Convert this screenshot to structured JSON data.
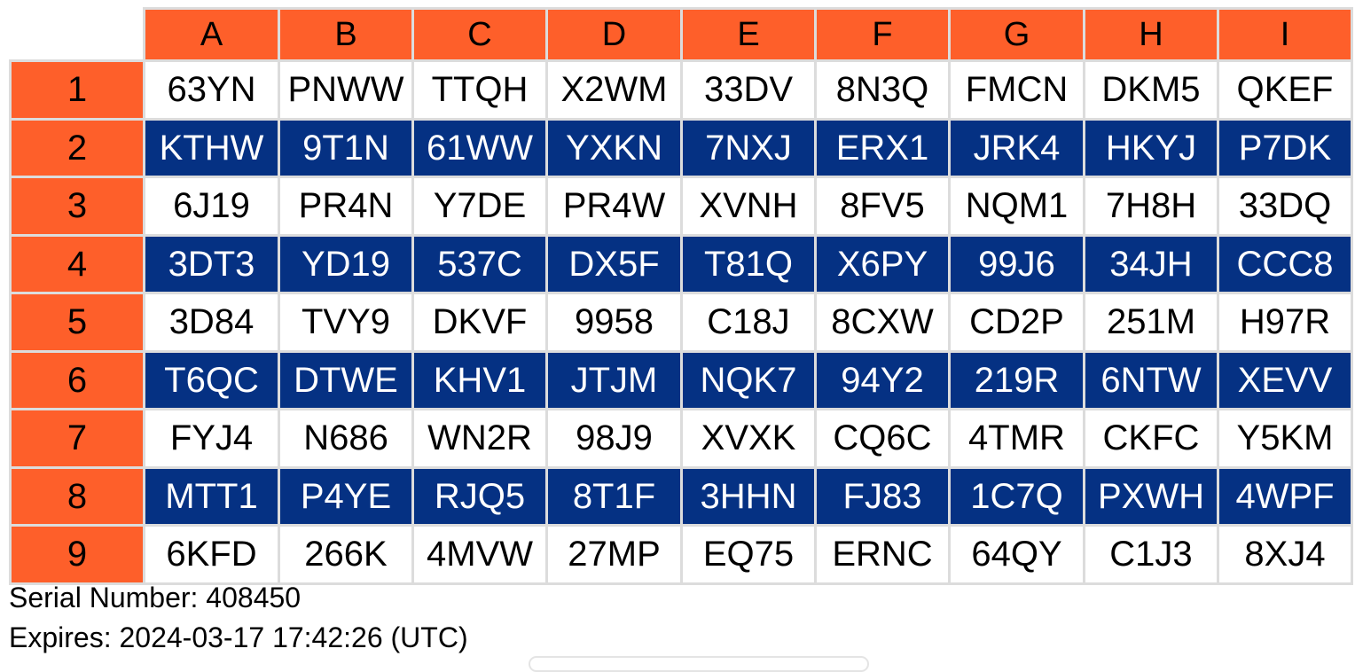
{
  "columns": [
    "A",
    "B",
    "C",
    "D",
    "E",
    "F",
    "G",
    "H",
    "I"
  ],
  "colors": {
    "header_orange": "#fe5f2a",
    "stripe_blue": "#053183",
    "grid_border": "#dcdcdc"
  },
  "rows": [
    {
      "label": "1",
      "stripe": "white",
      "cells": [
        "63YN",
        "PNWW",
        "TTQH",
        "X2WM",
        "33DV",
        "8N3Q",
        "FMCN",
        "DKM5",
        "QKEF"
      ]
    },
    {
      "label": "2",
      "stripe": "blue",
      "cells": [
        "KTHW",
        "9T1N",
        "61WW",
        "YXKN",
        "7NXJ",
        "ERX1",
        "JRK4",
        "HKYJ",
        "P7DK"
      ]
    },
    {
      "label": "3",
      "stripe": "white",
      "cells": [
        "6J19",
        "PR4N",
        "Y7DE",
        "PR4W",
        "XVNH",
        "8FV5",
        "NQM1",
        "7H8H",
        "33DQ"
      ]
    },
    {
      "label": "4",
      "stripe": "blue",
      "cells": [
        "3DT3",
        "YD19",
        "537C",
        "DX5F",
        "T81Q",
        "X6PY",
        "99J6",
        "34JH",
        "CCC8"
      ]
    },
    {
      "label": "5",
      "stripe": "white",
      "cells": [
        "3D84",
        "TVY9",
        "DKVF",
        "9958",
        "C18J",
        "8CXW",
        "CD2P",
        "251M",
        "H97R"
      ]
    },
    {
      "label": "6",
      "stripe": "blue",
      "cells": [
        "T6QC",
        "DTWE",
        "KHV1",
        "JTJM",
        "NQK7",
        "94Y2",
        "219R",
        "6NTW",
        "XEVV"
      ]
    },
    {
      "label": "7",
      "stripe": "white",
      "cells": [
        "FYJ4",
        "N686",
        "WN2R",
        "98J9",
        "XVXK",
        "CQ6C",
        "4TMR",
        "CKFC",
        "Y5KM"
      ]
    },
    {
      "label": "8",
      "stripe": "blue",
      "cells": [
        "MTT1",
        "P4YE",
        "RJQ5",
        "8T1F",
        "3HHN",
        "FJ83",
        "1C7Q",
        "PXWH",
        "4WPF"
      ]
    },
    {
      "label": "9",
      "stripe": "white",
      "cells": [
        "6KFD",
        "266K",
        "4MVW",
        "27MP",
        "EQ75",
        "ERNC",
        "64QY",
        "C1J3",
        "8XJ4"
      ]
    }
  ],
  "footer": {
    "serial_text": "Serial Number: 408450",
    "expires_text": "Expires: 2024-03-17 17:42:26 (UTC)"
  }
}
